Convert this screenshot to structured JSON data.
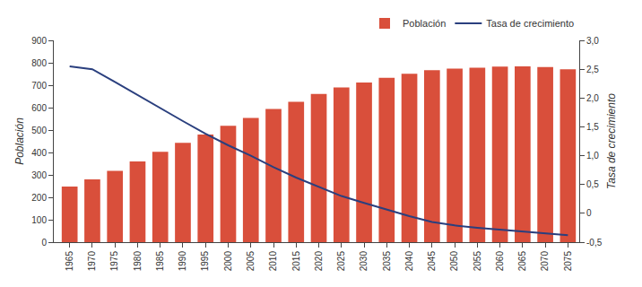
{
  "chart_data": {
    "type": "bar",
    "x": [
      1965,
      1970,
      1975,
      1980,
      1985,
      1990,
      1995,
      2000,
      2005,
      2010,
      2015,
      2020,
      2025,
      2030,
      2035,
      2040,
      2045,
      2050,
      2055,
      2060,
      2065,
      2070,
      2075
    ],
    "series": [
      {
        "name": "Población",
        "type": "bar",
        "color": "#d94f3b",
        "values": [
          248,
          280,
          318,
          360,
          403,
          443,
          480,
          519,
          554,
          594,
          626,
          661,
          690,
          712,
          733,
          751,
          767,
          774,
          778,
          783,
          784,
          781,
          771
        ]
      },
      {
        "name": "Tasa de crecimiento",
        "type": "line",
        "color": "#2a3f7e",
        "axis": "y2",
        "values": [
          2.55,
          2.5,
          2.28,
          2.05,
          1.82,
          1.6,
          1.38,
          1.18,
          1.0,
          0.8,
          0.62,
          0.46,
          0.3,
          0.18,
          0.06,
          -0.05,
          -0.15,
          -0.21,
          -0.25,
          -0.28,
          -0.31,
          -0.34,
          -0.38
        ]
      }
    ],
    "xlim": [
      1961.5,
      2077.5
    ],
    "xticks": [
      1965,
      1970,
      1975,
      1980,
      1985,
      1990,
      1995,
      2000,
      2005,
      2010,
      2015,
      2020,
      2025,
      2030,
      2035,
      2040,
      2045,
      2050,
      2055,
      2060,
      2065,
      2070,
      2075
    ],
    "ylim": [
      0,
      900
    ],
    "yticks": [
      0,
      100,
      200,
      300,
      400,
      500,
      600,
      700,
      800,
      900
    ],
    "y2lim": [
      -0.5,
      3.0
    ],
    "y2ticks": [
      {
        "value": -0.5,
        "label": "-0,5"
      },
      0,
      {
        "value": 0.5,
        "label": "0,5"
      },
      {
        "value": 1.0,
        "label": "1,0"
      },
      {
        "value": 1.5,
        "label": "1,5"
      },
      {
        "value": 2.0,
        "label": "2,0"
      },
      {
        "value": 2.5,
        "label": "2,5"
      },
      {
        "value": 3.0,
        "label": "3,0"
      }
    ],
    "ylabel": "Población",
    "y2label": "Tasa de crecimiento",
    "legend": "top",
    "grid": false
  }
}
